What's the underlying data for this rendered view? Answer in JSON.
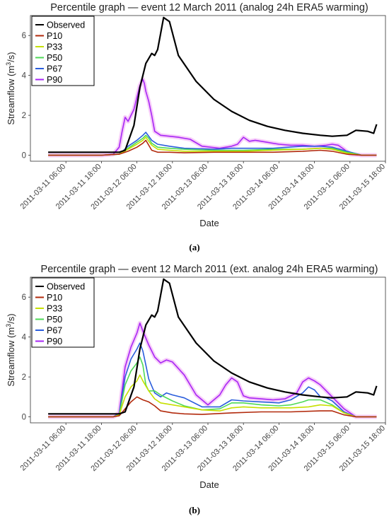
{
  "colors": {
    "Observed": "#000000",
    "P10": "#b22a0c",
    "P33": "#c6e000",
    "P50": "#4ed957",
    "P67": "#2a5ddc",
    "P90": "#a726f5",
    "P90_shade": "#f4b7f7"
  },
  "chart_data": [
    {
      "type": "line",
      "title": "Percentile graph — event 12 March 2011 (analog 24h ERA5 warming)",
      "xlabel": "Date",
      "ylabel_main": "Streamflow (m",
      "ylabel_sup": "3",
      "ylabel_end": "/s)",
      "xlim_hours": [
        -12,
        108
      ],
      "ylim": [
        -0.3,
        7.0
      ],
      "yticks": [
        "0",
        "2",
        "4",
        "6"
      ],
      "xticks": [
        "2011-03-11 06:00",
        "2011-03-11 18:00",
        "2011-03-12 06:00",
        "2011-03-12 18:00",
        "2011-03-13 06:00",
        "2011-03-13 18:00",
        "2011-03-14 06:00",
        "2011-03-14 18:00",
        "2011-03-15 06:00",
        "2011-03-15 18:00"
      ],
      "grid": false,
      "legend": "top-left",
      "series": [
        {
          "name": "Observed",
          "x": [
            -6,
            0,
            12,
            18,
            20,
            23,
            25,
            27,
            29,
            30,
            31,
            32,
            33,
            35,
            38,
            44,
            50,
            56,
            62,
            68,
            74,
            80,
            86,
            90,
            95,
            98,
            102,
            104,
            105
          ],
          "y": [
            0.15,
            0.15,
            0.15,
            0.15,
            0.25,
            1.5,
            3.4,
            4.6,
            5.1,
            5.0,
            5.3,
            6.1,
            6.9,
            6.7,
            5.0,
            3.7,
            2.8,
            2.2,
            1.75,
            1.45,
            1.25,
            1.1,
            1.0,
            0.95,
            1.0,
            1.25,
            1.2,
            1.1,
            1.55
          ]
        },
        {
          "name": "P10",
          "x": [
            -6,
            0,
            12,
            18,
            21,
            24,
            26,
            27,
            28,
            29,
            31,
            35,
            40,
            50,
            60,
            70,
            80,
            86,
            90,
            95,
            100,
            105
          ],
          "y": [
            0,
            0,
            0,
            0.05,
            0.2,
            0.4,
            0.6,
            0.75,
            0.5,
            0.25,
            0.15,
            0.15,
            0.12,
            0.15,
            0.15,
            0.15,
            0.2,
            0.25,
            0.2,
            0.05,
            0,
            0
          ]
        },
        {
          "name": "P33",
          "x": [
            -6,
            0,
            12,
            18,
            21,
            24,
            26,
            27,
            28,
            29,
            31,
            35,
            40,
            50,
            60,
            70,
            80,
            86,
            90,
            95,
            100,
            105
          ],
          "y": [
            0,
            0,
            0,
            0.05,
            0.3,
            0.55,
            0.75,
            0.9,
            0.7,
            0.5,
            0.3,
            0.25,
            0.2,
            0.2,
            0.2,
            0.25,
            0.3,
            0.35,
            0.3,
            0.1,
            0,
            0
          ]
        },
        {
          "name": "P50",
          "x": [
            -6,
            0,
            12,
            18,
            21,
            24,
            26,
            27,
            28,
            29,
            31,
            35,
            40,
            50,
            60,
            70,
            80,
            86,
            90,
            95,
            100,
            105
          ],
          "y": [
            0,
            0,
            0,
            0.05,
            0.35,
            0.65,
            0.85,
            1.0,
            0.85,
            0.6,
            0.4,
            0.35,
            0.3,
            0.25,
            0.25,
            0.3,
            0.3,
            0.35,
            0.35,
            0.15,
            0,
            0
          ]
        },
        {
          "name": "P67",
          "x": [
            -6,
            0,
            12,
            18,
            21,
            24,
            26,
            27,
            28,
            29,
            31,
            35,
            40,
            50,
            56,
            60,
            70,
            80,
            86,
            90,
            95,
            100,
            105
          ],
          "y": [
            0,
            0,
            0,
            0.05,
            0.45,
            0.75,
            1.0,
            1.15,
            0.95,
            0.75,
            0.55,
            0.45,
            0.35,
            0.3,
            0.35,
            0.35,
            0.35,
            0.45,
            0.45,
            0.4,
            0.2,
            0,
            0
          ]
        },
        {
          "name": "P90",
          "x": [
            -6,
            0,
            12,
            16,
            18,
            19,
            20,
            21,
            22,
            23,
            24,
            25,
            26,
            26.5,
            27,
            28,
            29,
            30,
            32,
            35,
            38,
            42,
            46,
            52,
            56,
            58,
            60,
            62,
            64,
            68,
            72,
            76,
            80,
            84,
            88,
            90,
            92,
            94,
            96,
            100,
            105
          ],
          "y": [
            0,
            0,
            0,
            0.05,
            0.4,
            1.2,
            1.9,
            1.7,
            2.0,
            2.3,
            2.9,
            3.5,
            3.8,
            3.6,
            3.2,
            2.7,
            2.0,
            1.2,
            1.0,
            0.95,
            0.9,
            0.8,
            0.45,
            0.35,
            0.45,
            0.55,
            0.9,
            0.7,
            0.75,
            0.65,
            0.55,
            0.5,
            0.5,
            0.45,
            0.5,
            0.55,
            0.5,
            0.3,
            0.05,
            0,
            0
          ]
        }
      ]
    },
    {
      "type": "line",
      "title": "Percentile graph — event 12 March 2011 (ext. analog 24h ERA5 warming)",
      "xlabel": "Date",
      "ylabel_main": "Streamflow (m",
      "ylabel_sup": "3",
      "ylabel_end": "/s)",
      "xlim_hours": [
        -12,
        108
      ],
      "ylim": [
        -0.3,
        7.0
      ],
      "yticks": [
        "0",
        "2",
        "4",
        "6"
      ],
      "xticks": [
        "2011-03-11 06:00",
        "2011-03-11 18:00",
        "2011-03-12 06:00",
        "2011-03-12 18:00",
        "2011-03-13 06:00",
        "2011-03-13 18:00",
        "2011-03-14 06:00",
        "2011-03-14 18:00",
        "2011-03-15 06:00",
        "2011-03-15 18:00"
      ],
      "grid": false,
      "legend": "top-left",
      "series": [
        {
          "name": "Observed",
          "x": [
            -6,
            0,
            12,
            18,
            20,
            23,
            25,
            27,
            29,
            30,
            31,
            32,
            33,
            35,
            38,
            44,
            50,
            56,
            62,
            68,
            74,
            80,
            86,
            90,
            95,
            98,
            102,
            104,
            105
          ],
          "y": [
            0.15,
            0.15,
            0.15,
            0.15,
            0.25,
            1.5,
            3.4,
            4.6,
            5.1,
            5.0,
            5.3,
            6.1,
            6.9,
            6.7,
            5.0,
            3.7,
            2.8,
            2.2,
            1.75,
            1.45,
            1.25,
            1.1,
            1.0,
            0.95,
            1.0,
            1.25,
            1.2,
            1.1,
            1.55
          ]
        },
        {
          "name": "P10",
          "x": [
            -6,
            0,
            12,
            16,
            18,
            20,
            22,
            24,
            26,
            28,
            30,
            32,
            36,
            40,
            46,
            56,
            66,
            76,
            86,
            90,
            94,
            98,
            105
          ],
          "y": [
            0,
            0,
            0,
            0,
            0.05,
            0.4,
            0.75,
            1.0,
            0.85,
            0.75,
            0.55,
            0.3,
            0.2,
            0.15,
            0.12,
            0.2,
            0.25,
            0.25,
            0.3,
            0.3,
            0.1,
            0,
            0
          ]
        },
        {
          "name": "P33",
          "x": [
            -6,
            0,
            12,
            16,
            18,
            20,
            22,
            24,
            25,
            26,
            28,
            30,
            32,
            36,
            40,
            46,
            52,
            56,
            60,
            66,
            72,
            76,
            82,
            86,
            90,
            94,
            98,
            105
          ],
          "y": [
            0,
            0,
            0,
            0,
            0.1,
            1.0,
            1.5,
            1.8,
            2.1,
            1.8,
            1.3,
            0.9,
            0.7,
            0.6,
            0.5,
            0.35,
            0.3,
            0.45,
            0.5,
            0.45,
            0.45,
            0.45,
            0.5,
            0.6,
            0.55,
            0.2,
            0,
            0
          ]
        },
        {
          "name": "P50",
          "x": [
            -6,
            0,
            12,
            16,
            18,
            20,
            22,
            24,
            25,
            26,
            27,
            28,
            30,
            32,
            36,
            40,
            46,
            52,
            56,
            60,
            66,
            72,
            76,
            80,
            82,
            86,
            90,
            94,
            98,
            105
          ],
          "y": [
            0,
            0,
            0,
            0,
            0.1,
            1.6,
            2.3,
            2.7,
            3.0,
            2.6,
            1.6,
            1.3,
            1.3,
            1.1,
            0.8,
            0.55,
            0.35,
            0.4,
            0.7,
            0.7,
            0.6,
            0.55,
            0.6,
            0.75,
            0.85,
            0.85,
            0.6,
            0.2,
            0,
            0
          ]
        },
        {
          "name": "P67",
          "x": [
            -6,
            0,
            12,
            16,
            18,
            20,
            22,
            24,
            25,
            26,
            27,
            28,
            30,
            32,
            34,
            36,
            40,
            46,
            52,
            56,
            60,
            66,
            72,
            76,
            80,
            82,
            84,
            86,
            88,
            90,
            94,
            98,
            105
          ],
          "y": [
            0,
            0,
            0,
            0,
            0.15,
            2.0,
            2.9,
            3.4,
            3.7,
            3.3,
            2.6,
            1.9,
            1.2,
            1.0,
            1.2,
            1.1,
            0.95,
            0.5,
            0.5,
            0.85,
            0.8,
            0.75,
            0.7,
            0.85,
            1.2,
            1.5,
            1.35,
            1.0,
            0.95,
            0.8,
            0.25,
            0,
            0
          ]
        },
        {
          "name": "P90",
          "x": [
            -6,
            0,
            12,
            16,
            18,
            20,
            22,
            24,
            25,
            26,
            28,
            30,
            32,
            34,
            36,
            40,
            44,
            48,
            52,
            54,
            56,
            58,
            60,
            62,
            66,
            70,
            74,
            78,
            80,
            82,
            84,
            86,
            88,
            90,
            94,
            98,
            105
          ],
          "y": [
            0,
            0,
            0,
            0,
            0.2,
            2.5,
            3.5,
            4.2,
            4.7,
            4.3,
            3.6,
            3.0,
            2.7,
            2.85,
            2.75,
            2.1,
            1.1,
            0.6,
            1.1,
            1.6,
            1.95,
            1.75,
            1.05,
            0.95,
            0.9,
            0.85,
            0.9,
            1.2,
            1.75,
            1.95,
            1.8,
            1.6,
            1.3,
            1.0,
            0.4,
            0,
            0
          ]
        }
      ]
    }
  ],
  "captions": [
    "(a)",
    "(b)"
  ]
}
